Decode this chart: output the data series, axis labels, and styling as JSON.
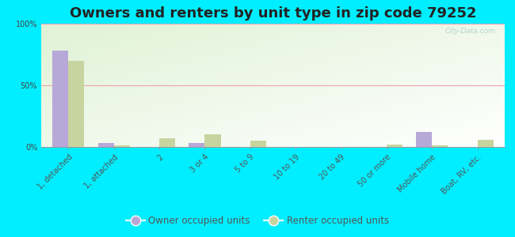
{
  "title": "Owners and renters by unit type in zip code 79252",
  "categories": [
    "1, detached",
    "1, attached",
    "2",
    "3 or 4",
    "5 to 9",
    "10 to 19",
    "20 to 49",
    "50 or more",
    "Mobile home",
    "Boat, RV, etc."
  ],
  "owner_values": [
    78,
    3,
    0,
    3,
    0,
    0,
    0,
    0,
    12,
    0
  ],
  "renter_values": [
    70,
    1,
    7,
    10,
    5,
    0,
    0,
    2,
    1,
    6
  ],
  "owner_color": "#b8a8d8",
  "renter_color": "#c8d4a0",
  "background_color": "#00eeff",
  "plot_bg_color": "#e8f2dc",
  "grid_color": "#f0a0b0",
  "ylim": [
    0,
    100
  ],
  "yticks": [
    0,
    50,
    100
  ],
  "ytick_labels": [
    "0%",
    "50%",
    "100%"
  ],
  "legend_owner": "Owner occupied units",
  "legend_renter": "Renter occupied units",
  "bar_width": 0.35,
  "title_fontsize": 13,
  "tick_fontsize": 7,
  "watermark": "City-Data.com"
}
